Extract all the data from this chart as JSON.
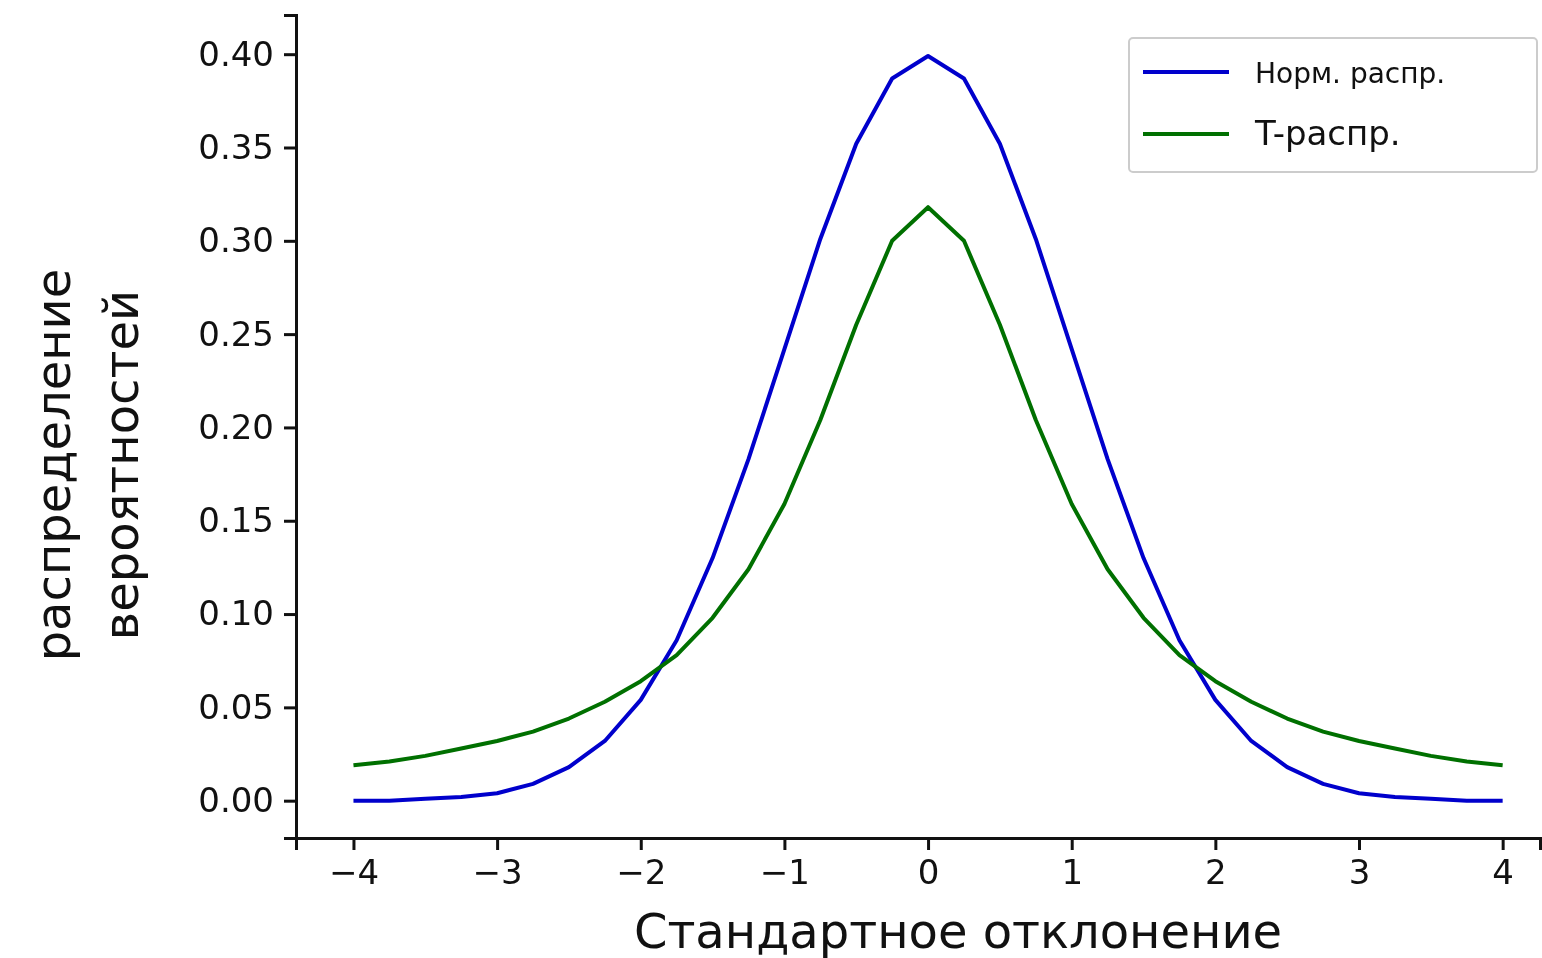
{
  "chart_data": {
    "type": "line",
    "xlabel": "Стандартное  отклонение",
    "ylabel": "распределение\nвероятностей",
    "x": [
      -4,
      -3.75,
      -3.5,
      -3.25,
      -3,
      -2.75,
      -2.5,
      -2.25,
      -2,
      -1.75,
      -1.5,
      -1.25,
      -1,
      -0.75,
      -0.5,
      -0.25,
      0,
      0.25,
      0.5,
      0.75,
      1,
      1.25,
      1.5,
      1.75,
      2,
      2.25,
      2.5,
      2.75,
      3,
      3.25,
      3.5,
      3.75,
      4
    ],
    "series": [
      {
        "name": "Норм. распр.",
        "color": "#0000cc",
        "values": [
          0.0,
          0.0,
          0.001,
          0.002,
          0.004,
          0.009,
          0.018,
          0.032,
          0.054,
          0.086,
          0.13,
          0.183,
          0.242,
          0.301,
          0.352,
          0.387,
          0.399,
          0.387,
          0.352,
          0.301,
          0.242,
          0.183,
          0.13,
          0.086,
          0.054,
          0.032,
          0.018,
          0.009,
          0.004,
          0.002,
          0.001,
          0.0,
          0.0
        ]
      },
      {
        "name": "T-распр.",
        "color": "#007000",
        "values": [
          0.019,
          0.021,
          0.024,
          0.028,
          0.032,
          0.037,
          0.044,
          0.053,
          0.064,
          0.078,
          0.098,
          0.124,
          0.159,
          0.204,
          0.255,
          0.3,
          0.318,
          0.3,
          0.255,
          0.204,
          0.159,
          0.124,
          0.098,
          0.078,
          0.064,
          0.053,
          0.044,
          0.037,
          0.032,
          0.028,
          0.024,
          0.021,
          0.019
        ]
      }
    ],
    "xlim": [
      -4.4,
      4.26
    ],
    "ylim": [
      -0.02,
      0.421
    ],
    "xticks": [
      {
        "value": -4,
        "label": "−4"
      },
      {
        "value": -3,
        "label": "−3"
      },
      {
        "value": -2,
        "label": "−2"
      },
      {
        "value": -1,
        "label": "−1"
      },
      0,
      1,
      2,
      3,
      4
    ],
    "yticks": [
      {
        "value": 0,
        "label": "0.00"
      },
      {
        "value": 0.05,
        "label": "0.05"
      },
      {
        "value": 0.1,
        "label": "0.10"
      },
      {
        "value": 0.15,
        "label": "0.15"
      },
      {
        "value": 0.2,
        "label": "0.20"
      },
      {
        "value": 0.25,
        "label": "0.25"
      },
      {
        "value": 0.3,
        "label": "0.30"
      },
      {
        "value": 0.35,
        "label": "0.35"
      },
      {
        "value": 0.4,
        "label": "0.40"
      }
    ],
    "legend": "top right",
    "grid": false,
    "marker": "none",
    "line_style": "solid"
  }
}
